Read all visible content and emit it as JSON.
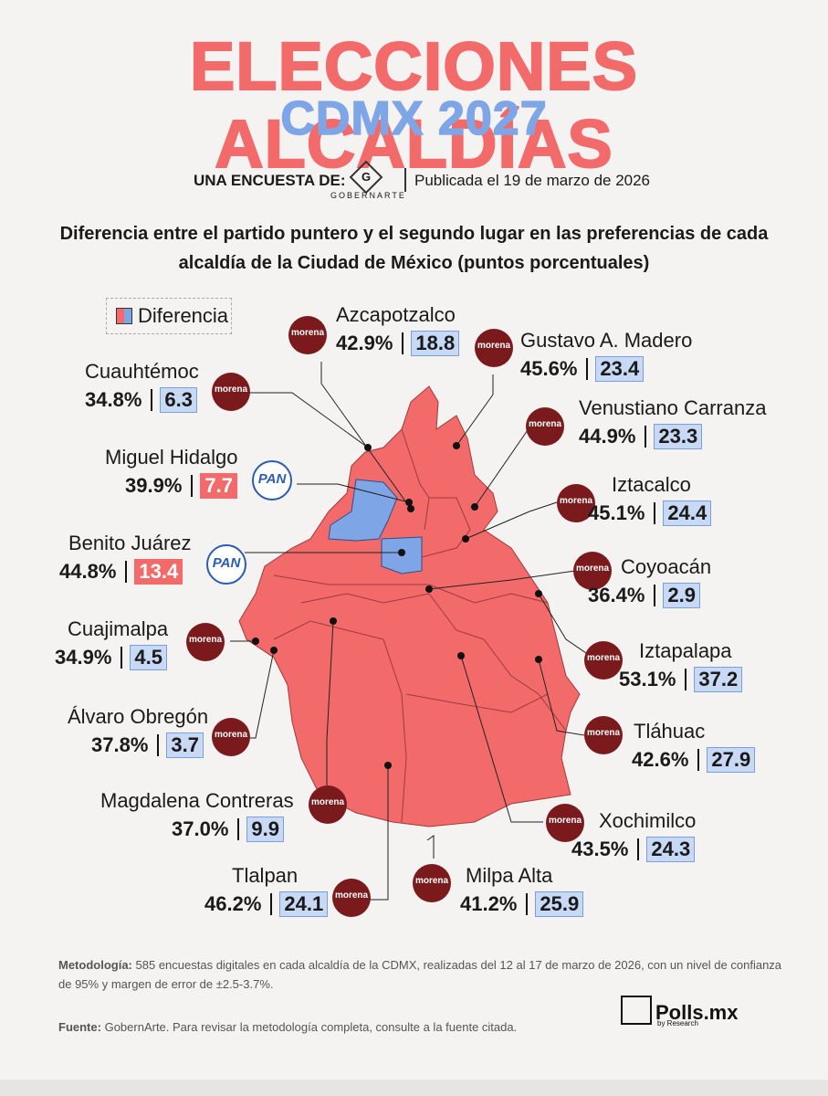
{
  "header": {
    "title": "ELECCIONES ALCALDÍAS",
    "subtitle": "CDMX 2027",
    "by_label": "UNA ENCUESTA DE:",
    "pollster": "GOBERNARTE",
    "published": "Publicada el 19 de marzo de 2026",
    "description": "Diferencia entre el partido puntero y el segundo lugar en las preferencias de cada alcaldía de la Ciudad de México (puntos porcentuales)"
  },
  "legend": {
    "label": "Diferencia"
  },
  "colors": {
    "morena": "#f26a6a",
    "pan": "#7ea6e6",
    "morena_logo": "#7b1a1c"
  },
  "alcaldias": [
    {
      "name": "Azcapotzalco",
      "leader": "42.9%",
      "diff": "18.8",
      "party": "morena"
    },
    {
      "name": "Gustavo A. Madero",
      "leader": "45.6%",
      "diff": "23.4",
      "party": "morena"
    },
    {
      "name": "Cuauhtémoc",
      "leader": "34.8%",
      "diff": "6.3",
      "party": "morena"
    },
    {
      "name": "Venustiano Carranza",
      "leader": "44.9%",
      "diff": "23.3",
      "party": "morena"
    },
    {
      "name": "Miguel Hidalgo",
      "leader": "39.9%",
      "diff": "7.7",
      "party": "pan"
    },
    {
      "name": "Iztacalco",
      "leader": "45.1%",
      "diff": "24.4",
      "party": "morena"
    },
    {
      "name": "Benito Juárez",
      "leader": "44.8%",
      "diff": "13.4",
      "party": "pan"
    },
    {
      "name": "Coyoacán",
      "leader": "36.4%",
      "diff": "2.9",
      "party": "morena"
    },
    {
      "name": "Cuajimalpa",
      "leader": "34.9%",
      "diff": "4.5",
      "party": "morena"
    },
    {
      "name": "Iztapalapa",
      "leader": "53.1%",
      "diff": "37.2",
      "party": "morena"
    },
    {
      "name": "Álvaro Obregón",
      "leader": "37.8%",
      "diff": "3.7",
      "party": "morena"
    },
    {
      "name": "Tláhuac",
      "leader": "42.6%",
      "diff": "27.9",
      "party": "morena"
    },
    {
      "name": "Magdalena Contreras",
      "leader": "37.0%",
      "diff": "9.9",
      "party": "morena"
    },
    {
      "name": "Xochimilco",
      "leader": "43.5%",
      "diff": "24.3",
      "party": "morena"
    },
    {
      "name": "Tlalpan",
      "leader": "46.2%",
      "diff": "24.1",
      "party": "morena"
    },
    {
      "name": "Milpa Alta",
      "leader": "41.2%",
      "diff": "25.9",
      "party": "morena"
    }
  ],
  "party_logos": {
    "morena": "morena",
    "pan": "PAN"
  },
  "footer": {
    "methodology_label": "Metodología:",
    "methodology": "585 encuestas digitales en cada alcaldía de la CDMX, realizadas del 12 al 17 de marzo de 2026, con un nivel de confianza de 95% y margen de error de ±2.5-3.7%.",
    "source_label": "Fuente:",
    "source": "GobernArte. Para revisar la metodología completa, consulte a la fuente citada.",
    "brand": "Polls.mx",
    "brand_sub": "by Research"
  }
}
